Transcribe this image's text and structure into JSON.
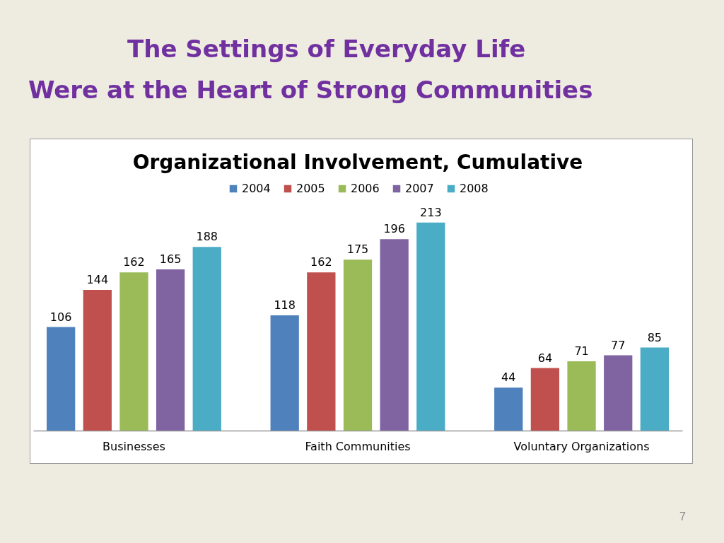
{
  "chart_data": {
    "type": "bar",
    "title": "The Settings of Everyday Life\nWere at the Heart of Strong Communities",
    "subtitle": "Organizational Involvement, Cumulative",
    "categories": [
      "Businesses",
      "Faith Communities",
      "Voluntary Organizations"
    ],
    "series": [
      {
        "name": "2004",
        "color": "#4f81bd",
        "values": [
          106,
          118,
          44
        ]
      },
      {
        "name": "2005",
        "color": "#c0504d",
        "values": [
          144,
          162,
          64
        ]
      },
      {
        "name": "2006",
        "color": "#9bbb59",
        "values": [
          162,
          175,
          71
        ]
      },
      {
        "name": "2007",
        "color": "#8064a2",
        "values": [
          165,
          196,
          77
        ]
      },
      {
        "name": "2008",
        "color": "#4bacc6",
        "values": [
          188,
          213,
          85
        ]
      }
    ],
    "data_labels": true,
    "legend": "top",
    "tick_labels": "x",
    "annotations": [
      "7"
    ]
  }
}
